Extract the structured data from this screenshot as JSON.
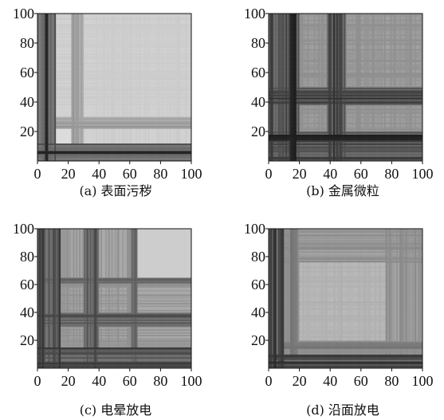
{
  "figure": {
    "background": "#ffffff"
  },
  "chart_data": [
    {
      "type": "heatmap",
      "caption": "(a) 表面污秽",
      "title": "",
      "xlabel": "",
      "ylabel": "",
      "xlim": [
        0,
        100
      ],
      "ylim": [
        0,
        100
      ],
      "xticks": [
        0,
        20,
        40,
        60,
        80,
        100
      ],
      "yticks": [
        20,
        40,
        60,
        80,
        100
      ],
      "grid": false,
      "base_gray": 220,
      "dark_bands": [
        {
          "from": 0,
          "to": 12,
          "strength": 0.75
        },
        {
          "from": 3,
          "to": 7,
          "strength": 0.9
        },
        {
          "from": 22,
          "to": 30,
          "strength": 0.35
        },
        {
          "from": 30,
          "to": 100,
          "strength": 0.08
        }
      ]
    },
    {
      "type": "heatmap",
      "caption": "(b) 金属微粒",
      "title": "",
      "xlabel": "",
      "ylabel": "",
      "xlim": [
        0,
        100
      ],
      "ylim": [
        0,
        100
      ],
      "xticks": [
        0,
        20,
        40,
        60,
        80,
        100
      ],
      "yticks": [
        20,
        40,
        60,
        80,
        100
      ],
      "grid": false,
      "base_gray": 190,
      "dark_bands": [
        {
          "from": 0,
          "to": 20,
          "strength": 0.7
        },
        {
          "from": 38,
          "to": 50,
          "strength": 0.75
        },
        {
          "from": 14,
          "to": 18,
          "strength": 0.9
        },
        {
          "from": 20,
          "to": 100,
          "strength": 0.25
        }
      ]
    },
    {
      "type": "heatmap",
      "caption": "(c) 电晕放电",
      "title": "",
      "xlabel": "",
      "ylabel": "",
      "xlim": [
        0,
        100
      ],
      "ylim": [
        0,
        100
      ],
      "xticks": [
        0,
        20,
        40,
        60,
        80,
        100
      ],
      "yticks": [
        20,
        40,
        60,
        80,
        100
      ],
      "grid": false,
      "base_gray": 205,
      "dark_bands": [
        {
          "from": 0,
          "to": 15,
          "strength": 0.75
        },
        {
          "from": 30,
          "to": 40,
          "strength": 0.7
        },
        {
          "from": 60,
          "to": 65,
          "strength": 0.55
        },
        {
          "from": 15,
          "to": 65,
          "strength": 0.3
        }
      ]
    },
    {
      "type": "heatmap",
      "caption": "(d) 沿面放电",
      "title": "",
      "xlabel": "",
      "ylabel": "",
      "xlim": [
        0,
        100
      ],
      "ylim": [
        0,
        100
      ],
      "xticks": [
        0,
        20,
        40,
        60,
        80,
        100
      ],
      "yticks": [
        20,
        40,
        60,
        80,
        100
      ],
      "grid": false,
      "base_gray": 205,
      "dark_bands": [
        {
          "from": 0,
          "to": 10,
          "strength": 0.8
        },
        {
          "from": 10,
          "to": 20,
          "strength": 0.45
        },
        {
          "from": 76,
          "to": 100,
          "strength": 0.35
        },
        {
          "from": 20,
          "to": 76,
          "strength": 0.15
        }
      ]
    }
  ]
}
